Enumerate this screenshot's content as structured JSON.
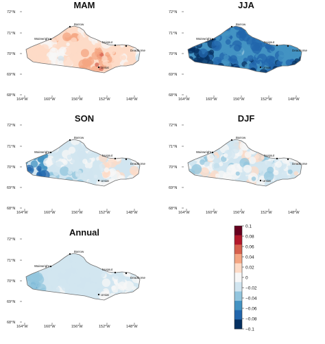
{
  "panels": [
    {
      "title": "MAM",
      "scheme": "warm"
    },
    {
      "title": "JJA",
      "scheme": "cold"
    },
    {
      "title": "SON",
      "scheme": "cool"
    },
    {
      "title": "DJF",
      "scheme": "mixed"
    },
    {
      "title": "Annual",
      "scheme": "light"
    }
  ],
  "lat_ticks": [
    "72°N",
    "71°N",
    "70°N",
    "69°N",
    "68°N"
  ],
  "lon_ticks": [
    "164°W",
    "160°W",
    "156°W",
    "152°W",
    "148°W"
  ],
  "towns": [
    "Barrow",
    "Wainwright",
    "Nuiqsut",
    "Deadhorse",
    "Umiat"
  ],
  "colorbar": {
    "min": -0.1,
    "max": 0.1,
    "tick_labels": [
      "0.1",
      "0.08",
      "0.06",
      "0.04",
      "0.02",
      "0",
      "−0.02",
      "−0.04",
      "−0.06",
      "−0.08",
      "−0.1"
    ],
    "colors": [
      "#67001f",
      "#b2182b",
      "#d6604d",
      "#f4a582",
      "#fddbc7",
      "#f7f7f7",
      "#d1e5f0",
      "#92c5de",
      "#4393c3",
      "#2166ac",
      "#053061"
    ]
  }
}
